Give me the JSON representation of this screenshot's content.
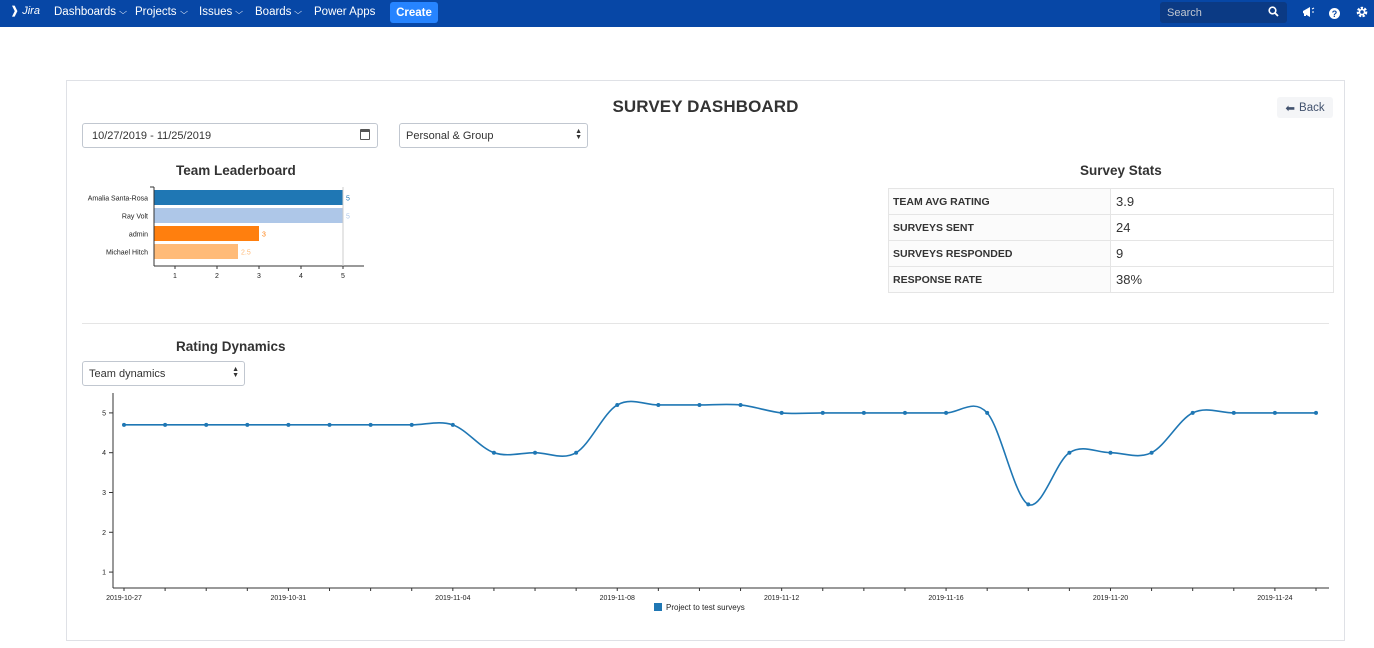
{
  "nav": {
    "logo": "Jira",
    "items": [
      {
        "label": "Dashboards",
        "dropdown": true
      },
      {
        "label": "Projects",
        "dropdown": true
      },
      {
        "label": "Issues",
        "dropdown": true
      },
      {
        "label": "Boards",
        "dropdown": true
      },
      {
        "label": "Power Apps",
        "dropdown": false
      }
    ],
    "create_label": "Create",
    "search_placeholder": "Search",
    "icons": [
      "search-icon",
      "notifications-icon",
      "help-icon",
      "settings-icon"
    ]
  },
  "page": {
    "title": "SURVEY DASHBOARD",
    "back_label": "Back",
    "date_range": "10/27/2019 - 11/25/2019",
    "scope_select": "Personal & Group"
  },
  "leaderboard": {
    "title": "Team Leaderboard"
  },
  "stats": {
    "title": "Survey Stats",
    "rows": [
      {
        "label": "TEAM AVG RATING",
        "value": "3.9"
      },
      {
        "label": "SURVEYS SENT",
        "value": "24"
      },
      {
        "label": "SURVEYS RESPONDED",
        "value": "9"
      },
      {
        "label": "RESPONSE RATE",
        "value": "38%"
      }
    ]
  },
  "dynamics": {
    "title": "Rating Dynamics",
    "select": "Team dynamics"
  },
  "colors": {
    "nav_bg": "#0747a6",
    "create_btn": "#2684ff",
    "line": "#1f77b4",
    "bars": [
      "#1f77b4",
      "#aec7e8",
      "#ff7f0e",
      "#ffbb78"
    ]
  },
  "chart_data": [
    {
      "type": "bar",
      "orientation": "horizontal",
      "categories": [
        "Amalia Santa-Rosa",
        "Ray Volt",
        "admin",
        "Michael Hitch"
      ],
      "values": [
        5,
        5,
        3,
        2.5
      ],
      "data_labels": [
        "5",
        "5",
        "3",
        "2.5"
      ],
      "xticks": [
        "1",
        "2",
        "3",
        "4",
        "5"
      ],
      "xlim": [
        0.5,
        5
      ]
    },
    {
      "type": "line",
      "series": [
        {
          "name": "Project to test surveys",
          "x": [
            "2019-10-27",
            "2019-10-28",
            "2019-10-29",
            "2019-10-30",
            "2019-10-31",
            "2019-11-01",
            "2019-11-02",
            "2019-11-03",
            "2019-11-04",
            "2019-11-05",
            "2019-11-06",
            "2019-11-07",
            "2019-11-08",
            "2019-11-09",
            "2019-11-10",
            "2019-11-11",
            "2019-11-12",
            "2019-11-13",
            "2019-11-14",
            "2019-11-15",
            "2019-11-16",
            "2019-11-17",
            "2019-11-18",
            "2019-11-19",
            "2019-11-20",
            "2019-11-21",
            "2019-11-22",
            "2019-11-23",
            "2019-11-24",
            "2019-11-25"
          ],
          "values": [
            4.7,
            4.7,
            4.7,
            4.7,
            4.7,
            4.7,
            4.7,
            4.7,
            4.7,
            4.0,
            4.0,
            4.0,
            5.2,
            5.2,
            5.2,
            5.2,
            5.0,
            5.0,
            5.0,
            5.0,
            5.0,
            5.0,
            2.7,
            4.0,
            4.0,
            4.0,
            5.0,
            5.0,
            5.0,
            5.0
          ]
        }
      ],
      "xticks": [
        "2019-10-27",
        "2019-10-31",
        "2019-11-04",
        "2019-11-08",
        "2019-11-12",
        "2019-11-16",
        "2019-11-20",
        "2019-11-24"
      ],
      "yticks": [
        "1",
        "2",
        "3",
        "4",
        "5"
      ],
      "ylim": [
        0.6,
        5.5
      ],
      "legend": "bottom-center"
    }
  ]
}
